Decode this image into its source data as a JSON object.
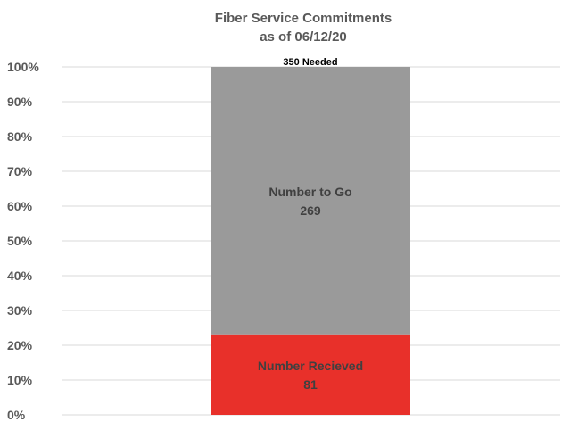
{
  "chart_data": {
    "type": "bar",
    "stacked": true,
    "percent_stacked": true,
    "title": [
      "Fiber Service Commitments",
      "as of 06/12/20"
    ],
    "top_annotation": "350 Needed",
    "y_ticks": [
      "0%",
      "10%",
      "20%",
      "30%",
      "40%",
      "50%",
      "60%",
      "70%",
      "80%",
      "90%",
      "100%"
    ],
    "ylim": [
      0,
      100
    ],
    "grid": true,
    "total": 350,
    "series": [
      {
        "name": "Number Recieved",
        "value": 81,
        "color": "#e8302a",
        "value_label": "81"
      },
      {
        "name": "Number to Go",
        "value": 269,
        "color": "#9a9a9a",
        "value_label": "269"
      }
    ],
    "colors": {
      "gridline": "#d9d9d9",
      "tick_label": "#595959",
      "segment_label": "#404040",
      "title": "#595959"
    }
  }
}
